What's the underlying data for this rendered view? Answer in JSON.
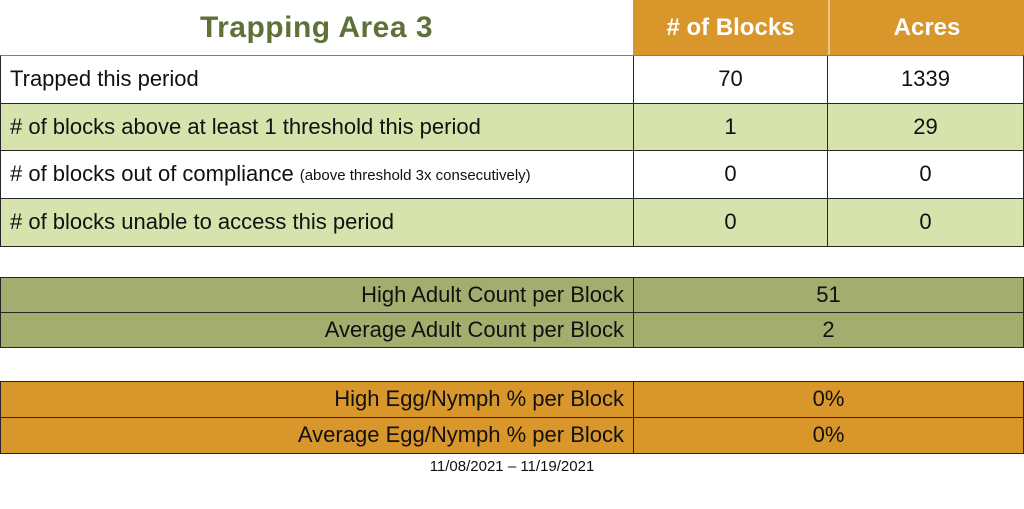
{
  "title": "Trapping Area 3",
  "header": {
    "blocks_label": "# of Blocks",
    "acres_label": "Acres"
  },
  "main_table": {
    "rows": [
      {
        "label": "Trapped this period",
        "note": "",
        "blocks": "70",
        "acres": "1339"
      },
      {
        "label": "# of blocks above at least 1 threshold this period",
        "note": "",
        "blocks": "1",
        "acres": "29"
      },
      {
        "label": "# of blocks out of compliance",
        "note": "(above threshold 3x consecutively)",
        "blocks": "0",
        "acres": "0"
      },
      {
        "label": "# of blocks unable to access this period",
        "note": "",
        "blocks": "0",
        "acres": "0"
      }
    ]
  },
  "adult_table": {
    "rows": [
      {
        "label": "High Adult Count per Block",
        "value": "51"
      },
      {
        "label": "Average Adult Count per Block",
        "value": "2"
      }
    ]
  },
  "egg_table": {
    "rows": [
      {
        "label": "High Egg/Nymph % per Block",
        "value": "0%"
      },
      {
        "label": "Average Egg/Nymph % per Block",
        "value": "0%"
      }
    ]
  },
  "date_range": "11/08/2021 – 11/19/2021",
  "colors": {
    "accent_orange": "#D8962B",
    "row_green": "#D7E3AC",
    "olive_green": "#A3AD6E",
    "title_green": "#5F7137",
    "header_text": "#FFFFFF"
  }
}
